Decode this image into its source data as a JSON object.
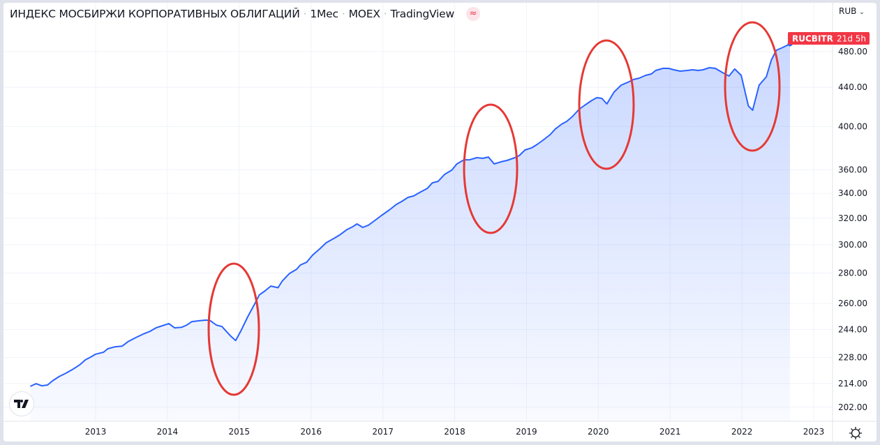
{
  "header": {
    "title": "ИНДЕКС МОСБИРЖИ КОРПОРАТИВНЫХ ОБЛИГАЦИЙ",
    "interval": "1Мес",
    "exchange": "MOEX",
    "source": "TradingView",
    "badge_icon": "≈"
  },
  "price_axis": {
    "currency": "RUB"
  },
  "last_price_label": {
    "symbol": "RUCBITR",
    "countdown": "21d 5h",
    "color": "#f23645"
  },
  "logo": "TV",
  "colors": {
    "line": "#2962ff",
    "annotation": "#e53935",
    "grid": "#f0f3fa"
  },
  "chart_data": {
    "type": "area",
    "title": "ИНДЕКС МОСБИРЖИ КОРПОРАТИВНЫХ ОБЛИГАЦИЙ",
    "xlabel": "",
    "ylabel": "",
    "y_scale": "log",
    "ylim": [
      196,
      500
    ],
    "xlim": [
      2012.0,
      2023.3
    ],
    "grid": true,
    "x_ticks": [
      "2013",
      "2014",
      "2015",
      "2016",
      "2017",
      "2018",
      "2019",
      "2020",
      "2021",
      "2022",
      "2023"
    ],
    "y_ticks": [
      "480.00",
      "440.00",
      "400.00",
      "360.00",
      "340.00",
      "320.00",
      "300.00",
      "280.00",
      "260.00",
      "244.00",
      "228.00",
      "214.00",
      "202.00"
    ],
    "series": [
      {
        "name": "RUCBITR",
        "x": [
          2012.09,
          2012.17,
          2012.25,
          2012.33,
          2012.4,
          2012.49,
          2012.59,
          2012.69,
          2012.78,
          2012.86,
          2012.93,
          2013.0,
          2013.11,
          2013.17,
          2013.27,
          2013.37,
          2013.45,
          2013.56,
          2013.66,
          2013.76,
          2013.84,
          2013.93,
          2014.02,
          2014.1,
          2014.2,
          2014.27,
          2014.34,
          2014.44,
          2014.54,
          2014.6,
          2014.68,
          2014.76,
          2014.83,
          2014.89,
          2014.95,
          2015.02,
          2015.12,
          2015.22,
          2015.28,
          2015.36,
          2015.44,
          2015.54,
          2015.6,
          2015.7,
          2015.8,
          2015.85,
          2015.94,
          2016.02,
          2016.12,
          2016.21,
          2016.33,
          2016.41,
          2016.5,
          2016.58,
          2016.64,
          2016.72,
          2016.8,
          2016.89,
          2016.98,
          2017.09,
          2017.19,
          2017.26,
          2017.35,
          2017.43,
          2017.53,
          2017.62,
          2017.69,
          2017.77,
          2017.86,
          2017.96,
          2018.03,
          2018.13,
          2018.21,
          2018.31,
          2018.39,
          2018.47,
          2018.55,
          2018.65,
          2018.73,
          2018.84,
          2018.9,
          2018.98,
          2019.07,
          2019.15,
          2019.23,
          2019.33,
          2019.4,
          2019.49,
          2019.56,
          2019.64,
          2019.73,
          2019.81,
          2019.91,
          2019.98,
          2020.05,
          2020.12,
          2020.22,
          2020.32,
          2020.41,
          2020.49,
          2020.57,
          2020.66,
          2020.74,
          2020.8,
          2020.9,
          2020.98,
          2021.05,
          2021.14,
          2021.24,
          2021.31,
          2021.39,
          2021.46,
          2021.55,
          2021.63,
          2021.73,
          2021.82,
          2021.9,
          2021.99,
          2022.09,
          2022.15,
          2022.24,
          2022.34,
          2022.41,
          2022.48,
          2022.57,
          2022.67
        ],
        "y": [
          212.5,
          213.9,
          212.8,
          213.2,
          215.4,
          217.6,
          219.5,
          221.7,
          224.0,
          226.7,
          228.2,
          229.8,
          230.9,
          232.9,
          234.0,
          234.4,
          236.9,
          239.3,
          241.3,
          243.0,
          245.0,
          246.3,
          247.6,
          245.0,
          245.4,
          246.7,
          248.8,
          249.3,
          249.7,
          249.3,
          246.7,
          245.8,
          242.5,
          239.8,
          237.6,
          243.0,
          251.8,
          260.1,
          265.5,
          268.1,
          271.3,
          270.2,
          274.6,
          279.7,
          282.6,
          285.5,
          287.5,
          292.4,
          296.9,
          301.4,
          305.0,
          307.6,
          311.3,
          313.4,
          315.6,
          312.9,
          314.6,
          318.3,
          322.1,
          326.5,
          331.0,
          333.2,
          336.6,
          337.8,
          341.2,
          344.1,
          348.8,
          350.0,
          356.0,
          359.7,
          365.2,
          368.9,
          368.9,
          370.8,
          370.2,
          371.4,
          365.2,
          367.1,
          368.3,
          370.8,
          372.7,
          377.8,
          379.7,
          383.0,
          386.9,
          392.2,
          397.5,
          402.3,
          405.0,
          409.9,
          416.9,
          421.2,
          426.2,
          429.1,
          428.4,
          422.6,
          435.0,
          442.4,
          445.4,
          448.5,
          450.0,
          453.1,
          454.6,
          458.5,
          460.8,
          460.8,
          459.3,
          457.7,
          458.5,
          459.3,
          458.5,
          459.3,
          461.6,
          460.8,
          456.2,
          452.3,
          460.1,
          453.1,
          420.5,
          416.2,
          442.4,
          451.5,
          470.3,
          481.6,
          484.9,
          489.1
        ]
      }
    ],
    "annotations": [
      "ellipse around 2015 dip",
      "ellipse around 2018 dip",
      "ellipse around 2020 dip",
      "ellipse around 2022 dip"
    ]
  }
}
